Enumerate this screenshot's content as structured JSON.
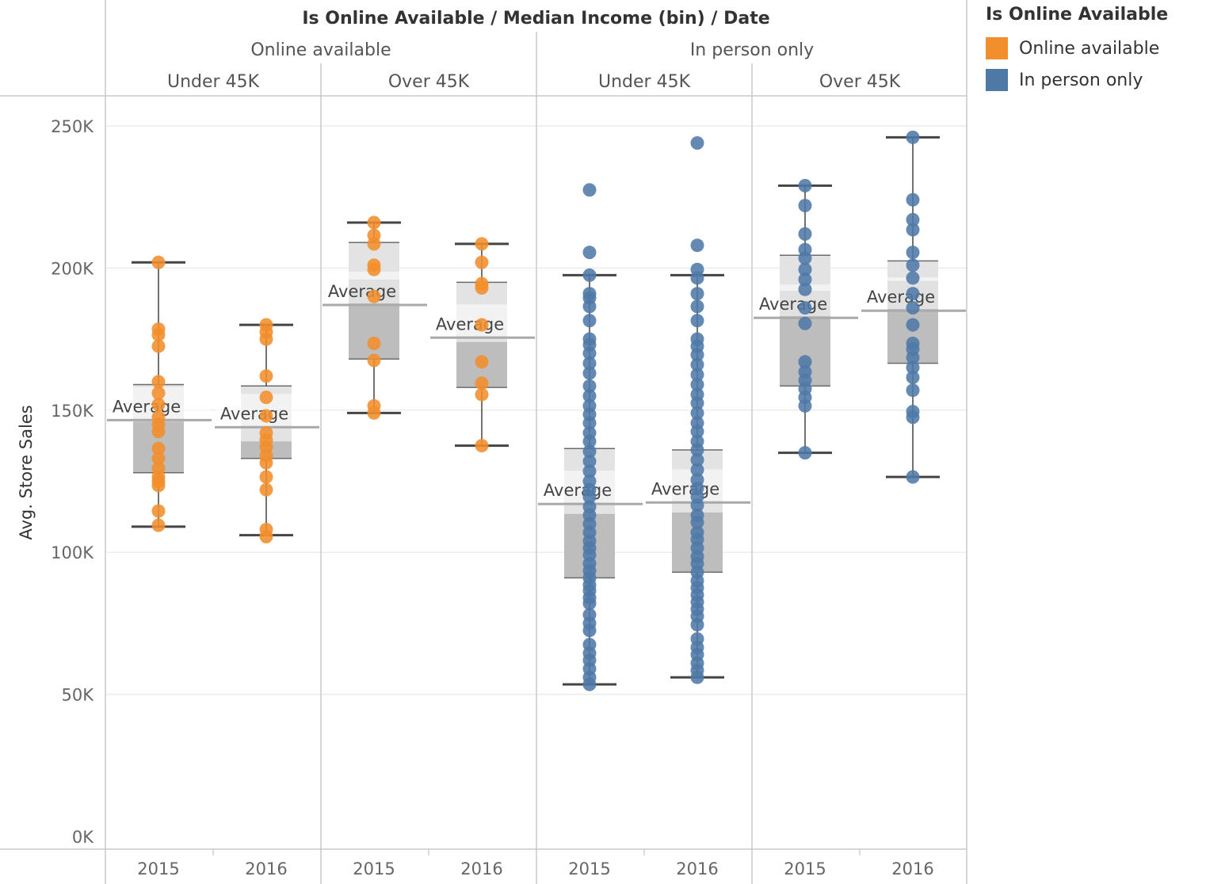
{
  "chart_data": {
    "type": "box-plot",
    "header_title": "Is Online Available  /  Median Income (bin)  /  Date",
    "ylabel": "Avg. Store Sales",
    "ylim": [
      0,
      250000
    ],
    "y_ticks": [
      {
        "value": 0,
        "label": "0K"
      },
      {
        "value": 50000,
        "label": "50K"
      },
      {
        "value": 100000,
        "label": "100K"
      },
      {
        "value": 150000,
        "label": "150K"
      },
      {
        "value": 200000,
        "label": "200K"
      },
      {
        "value": 250000,
        "label": "250K"
      }
    ],
    "reference_line_label": "Average",
    "legend": {
      "title": "Is Online Available",
      "items": [
        {
          "label": "Online available",
          "color": "#f28e2b"
        },
        {
          "label": "In person only",
          "color": "#4e79a7"
        }
      ]
    },
    "groups": [
      {
        "label": "Online available",
        "color": "#f28e2b",
        "bins": [
          {
            "label": "Under 45K",
            "years": [
              {
                "label": "2015",
                "whisker_low": 109000,
                "q1": 128000,
                "median": 146000,
                "q3": 159000,
                "whisker_high": 202000,
                "average": 146500,
                "points": [
                  109500,
                  114500,
                  123500,
                  125000,
                  126500,
                  129500,
                  133000,
                  136500,
                  142500,
                  145000,
                  147500,
                  152000,
                  156000,
                  160000,
                  172500,
                  176500,
                  178500,
                  202000
                ]
              },
              {
                "label": "2016",
                "whisker_low": 106000,
                "q1": 133000,
                "median": 139000,
                "q3": 158500,
                "whisker_high": 180000,
                "average": 144000,
                "points": [
                  105500,
                  108000,
                  122000,
                  126500,
                  131500,
                  134000,
                  137000,
                  139500,
                  142000,
                  148000,
                  154500,
                  162000,
                  175000,
                  177500,
                  180000
                ]
              }
            ]
          },
          {
            "label": "Over 45K",
            "years": [
              {
                "label": "2015",
                "whisker_low": 149000,
                "q1": 168000,
                "median": 196000,
                "q3": 209000,
                "whisker_high": 216000,
                "average": 187000,
                "points": [
                  149000,
                  151500,
                  167500,
                  173500,
                  190000,
                  199500,
                  201000,
                  208500,
                  211500,
                  216000
                ]
              },
              {
                "label": "2016",
                "whisker_low": 137500,
                "q1": 158000,
                "median": 174000,
                "q3": 195000,
                "whisker_high": 208500,
                "average": 175500,
                "points": [
                  137500,
                  155500,
                  159500,
                  167000,
                  180000,
                  193000,
                  194500,
                  202000,
                  208500
                ]
              }
            ]
          }
        ]
      },
      {
        "label": "In person only",
        "color": "#4e79a7",
        "bins": [
          {
            "label": "Under 45K",
            "years": [
              {
                "label": "2015",
                "whisker_low": 53500,
                "q1": 91000,
                "median": 113500,
                "q3": 136500,
                "whisker_high": 197500,
                "average": 117000,
                "points": [
                  53500,
                  56000,
                  59000,
                  62000,
                  64500,
                  67500,
                  72500,
                  75000,
                  78000,
                  82000,
                  84000,
                  86500,
                  88500,
                  91000,
                  93500,
                  96000,
                  99000,
                  101500,
                  104000,
                  107000,
                  110000,
                  113000,
                  116000,
                  119500,
                  122000,
                  125000,
                  128500,
                  132000,
                  135500,
                  139000,
                  142000,
                  145500,
                  148500,
                  151500,
                  155000,
                  158500,
                  163000,
                  166500,
                  170000,
                  173000,
                  175000,
                  181500,
                  186500,
                  189500,
                  191000,
                  197500,
                  205500,
                  227500
                ]
              },
              {
                "label": "2016",
                "whisker_low": 56000,
                "q1": 93000,
                "median": 114000,
                "q3": 136000,
                "whisker_high": 197500,
                "average": 117500,
                "points": [
                  56000,
                  58500,
                  61000,
                  64000,
                  66500,
                  69500,
                  74500,
                  77500,
                  80000,
                  82500,
                  85000,
                  87500,
                  90000,
                  93000,
                  96000,
                  98500,
                  101500,
                  104500,
                  107000,
                  110500,
                  113000,
                  116500,
                  119500,
                  122500,
                  125500,
                  129000,
                  132500,
                  136000,
                  139000,
                  142500,
                  145500,
                  149000,
                  152500,
                  155500,
                  159000,
                  162500,
                  166000,
                  169500,
                  172500,
                  175000,
                  181500,
                  186500,
                  191000,
                  196500,
                  199500,
                  208000,
                  244000
                ]
              }
            ]
          },
          {
            "label": "Over 45K",
            "years": [
              {
                "label": "2015",
                "whisker_low": 135000,
                "q1": 158500,
                "median": 192000,
                "q3": 204500,
                "whisker_high": 229000,
                "average": 182500,
                "points": [
                  135000,
                  151500,
                  154500,
                  157500,
                  160500,
                  163500,
                  167000,
                  180500,
                  186000,
                  192500,
                  196000,
                  199500,
                  203500,
                  206500,
                  212000,
                  222000,
                  229000
                ]
              },
              {
                "label": "2016",
                "whisker_low": 126500,
                "q1": 166500,
                "median": 195500,
                "q3": 202500,
                "whisker_high": 246000,
                "average": 185000,
                "points": [
                  126500,
                  147500,
                  149500,
                  157000,
                  161500,
                  165000,
                  168500,
                  171500,
                  173500,
                  180000,
                  186000,
                  191000,
                  196500,
                  201000,
                  205500,
                  213500,
                  217000,
                  224000,
                  246000
                ]
              }
            ]
          }
        ]
      }
    ]
  }
}
